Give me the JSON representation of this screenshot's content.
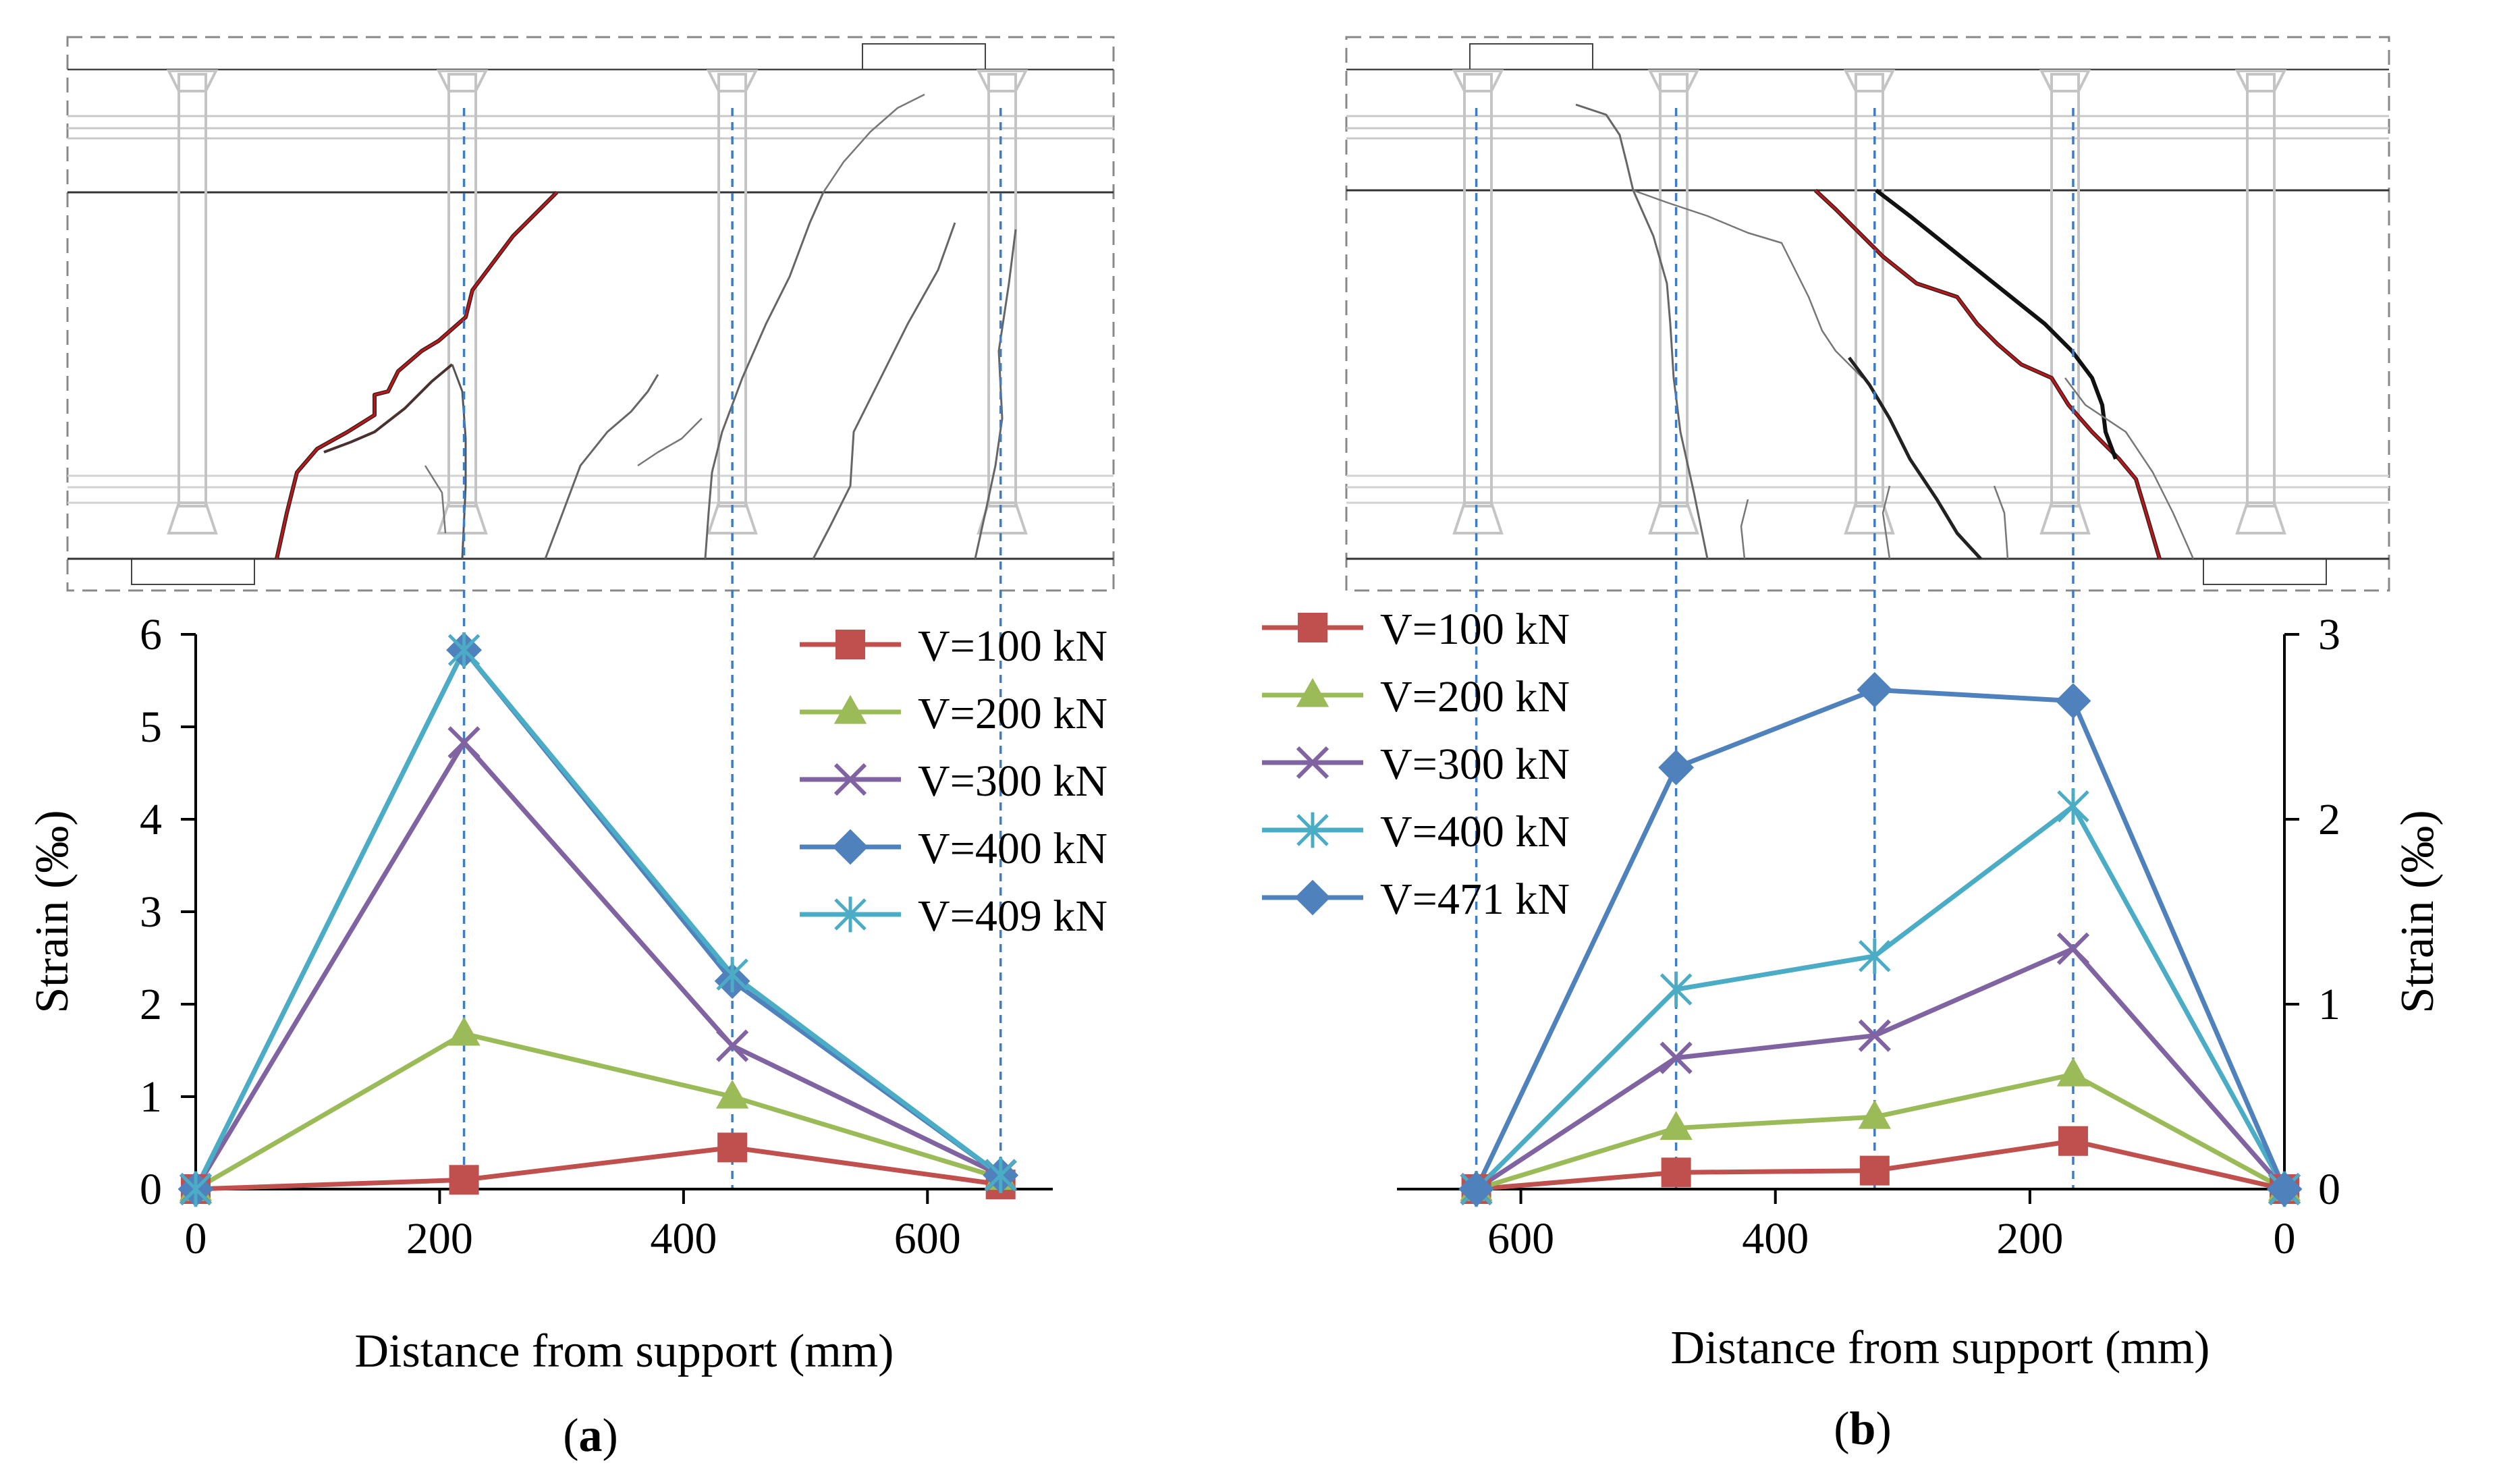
{
  "panels": [
    {
      "label": "a",
      "xlabel": "Distance from support (mm)",
      "ylabel": "Strain (‰)"
    },
    {
      "label": "b",
      "xlabel": "Distance from support (mm)",
      "ylabel": "Strain (‰)"
    }
  ],
  "colors": {
    "V100": "#c0504d",
    "V200": "#9bbb59",
    "V300": "#8064a2",
    "V400": "#4f81bd",
    "V409": "#4bacc6",
    "guide": "#3e7cc6",
    "crack_red": "#c0181a",
    "crack_dark": "#333333"
  },
  "chart_data": [
    {
      "type": "line",
      "xlim": [
        0,
        700
      ],
      "ylim": [
        0,
        6
      ],
      "xticks": [
        0,
        200,
        400,
        600
      ],
      "yticks": [
        0,
        1,
        2,
        3,
        4,
        5,
        6
      ],
      "legend_position": "top-right",
      "x": [
        0,
        220,
        440,
        660
      ],
      "series": [
        {
          "name": "V=100 kN",
          "marker": "square",
          "color": "#c0504d",
          "values": [
            0,
            0.1,
            0.45,
            0.05
          ]
        },
        {
          "name": "V=200 kN",
          "marker": "triangle",
          "color": "#9bbb59",
          "values": [
            0,
            1.68,
            1.0,
            0.12
          ]
        },
        {
          "name": "V=300 kN",
          "marker": "x",
          "color": "#8064a2",
          "values": [
            0,
            4.83,
            1.55,
            0.15
          ]
        },
        {
          "name": "V=400 kN",
          "marker": "diamond",
          "color": "#4f81bd",
          "values": [
            0,
            5.83,
            2.25,
            0.15
          ]
        },
        {
          "name": "V=409 kN",
          "marker": "asterisk",
          "color": "#4bacc6",
          "values": [
            0,
            5.83,
            2.32,
            0.15
          ]
        }
      ],
      "guide_x": [
        220,
        440,
        660
      ]
    },
    {
      "type": "line",
      "x_reversed": true,
      "y_axis_side": "right",
      "xlim": [
        0,
        700
      ],
      "ylim": [
        0,
        3
      ],
      "xticks": [
        600,
        400,
        200,
        0
      ],
      "yticks": [
        0,
        1,
        2,
        3
      ],
      "legend_position": "top-left",
      "x": [
        635,
        478,
        322,
        166,
        0
      ],
      "series": [
        {
          "name": "V=100 kN",
          "marker": "square",
          "color": "#c0504d",
          "values": [
            0,
            0.09,
            0.1,
            0.26,
            0
          ]
        },
        {
          "name": "V=200 kN",
          "marker": "triangle",
          "color": "#9bbb59",
          "values": [
            0,
            0.33,
            0.39,
            0.62,
            0
          ]
        },
        {
          "name": "V=300 kN",
          "marker": "x",
          "color": "#8064a2",
          "values": [
            0,
            0.71,
            0.83,
            1.3,
            0
          ]
        },
        {
          "name": "V=400 kN",
          "marker": "asterisk",
          "color": "#4bacc6",
          "values": [
            0,
            1.08,
            1.26,
            2.07,
            0
          ]
        },
        {
          "name": "V=471 kN",
          "marker": "diamond",
          "color": "#4f81bd",
          "values": [
            0,
            2.28,
            2.7,
            2.64,
            0
          ]
        }
      ],
      "guide_x": [
        635,
        478,
        322,
        166
      ]
    }
  ]
}
